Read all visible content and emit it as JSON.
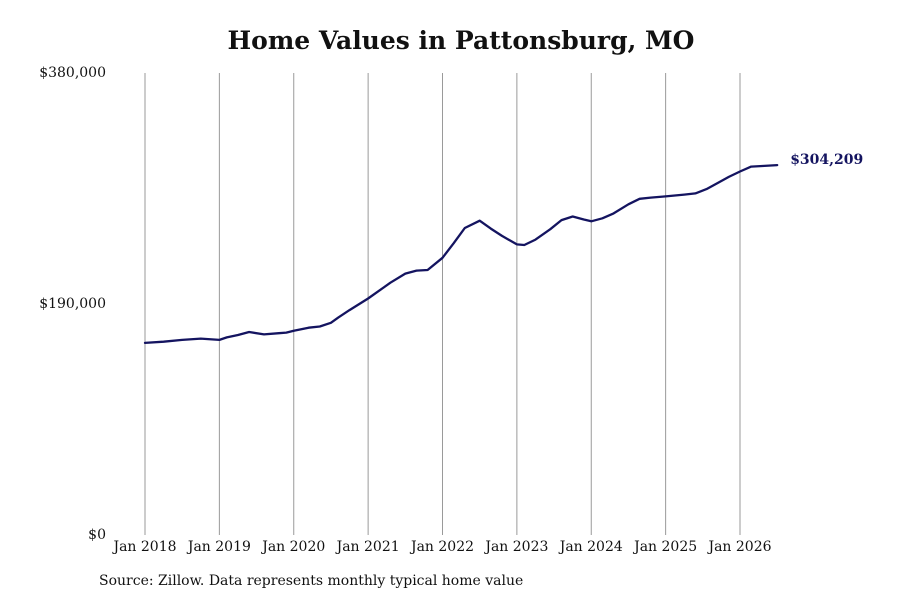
{
  "chart_data": {
    "type": "line",
    "title": "Home Values in Pattonsburg, MO",
    "source": "Source: Zillow. Data represents monthly typical home value",
    "ylim": [
      0,
      380000
    ],
    "y_ticks": [
      {
        "value": 0,
        "label": "$0"
      },
      {
        "value": 190000,
        "label": "$190,000"
      },
      {
        "value": 380000,
        "label": "$380,000"
      }
    ],
    "x_ticks": [
      {
        "value": 2018,
        "label": "Jan 2018"
      },
      {
        "value": 2019,
        "label": "Jan 2019"
      },
      {
        "value": 2020,
        "label": "Jan 2020"
      },
      {
        "value": 2021,
        "label": "Jan 2021"
      },
      {
        "value": 2022,
        "label": "Jan 2022"
      },
      {
        "value": 2023,
        "label": "Jan 2023"
      },
      {
        "value": 2024,
        "label": "Jan 2024"
      },
      {
        "value": 2025,
        "label": "Jan 2025"
      },
      {
        "value": 2026,
        "label": "Jan 2026"
      }
    ],
    "xlim": [
      2018,
      2026.5
    ],
    "grid": "vertical",
    "line_color": "#141460",
    "end_label": "$304,209",
    "series": [
      {
        "x": [
          2018.0,
          2018.25,
          2018.5,
          2018.75,
          2019.0,
          2019.1,
          2019.25,
          2019.4,
          2019.6,
          2019.8,
          2019.9,
          2020.0,
          2020.2,
          2020.35,
          2020.5,
          2020.6,
          2020.75,
          2021.0,
          2021.15,
          2021.3,
          2021.5,
          2021.65,
          2021.8,
          2022.0,
          2022.15,
          2022.3,
          2022.5,
          2022.65,
          2022.8,
          2023.0,
          2023.1,
          2023.25,
          2023.45,
          2023.6,
          2023.75,
          2023.9,
          2024.0,
          2024.15,
          2024.3,
          2024.5,
          2024.65,
          2024.8,
          2025.0,
          2025.25,
          2025.4,
          2025.55,
          2025.7,
          2025.85,
          2026.0,
          2026.15,
          2026.3,
          2026.5
        ],
        "y": [
          158000,
          159000,
          160500,
          161500,
          160500,
          162500,
          164500,
          167000,
          165000,
          166000,
          166500,
          168000,
          170500,
          171500,
          174500,
          179000,
          185000,
          194500,
          201000,
          207500,
          215000,
          217500,
          218000,
          228000,
          240000,
          252500,
          258500,
          252000,
          246000,
          239000,
          238500,
          243000,
          251500,
          259000,
          262000,
          259500,
          258000,
          260500,
          264500,
          272000,
          276500,
          277500,
          278500,
          280000,
          281000,
          284500,
          289500,
          294500,
          299000,
          303000,
          303500,
          304209
        ]
      }
    ]
  }
}
